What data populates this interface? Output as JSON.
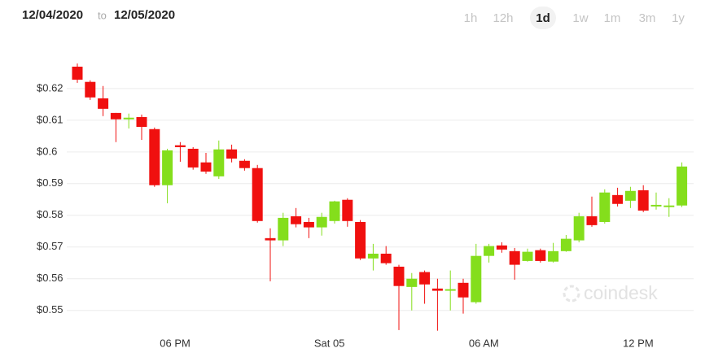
{
  "controls": {
    "from": "12/04/2020",
    "separator": "to",
    "to": "12/05/2020",
    "ranges": [
      "1h",
      "12h",
      "1d",
      "1w",
      "1m",
      "3m",
      "1y"
    ],
    "selected": 2,
    "watermark": "coindesk"
  },
  "chart_data": {
    "type": "candlestick",
    "categories": [
      null,
      null,
      null,
      null,
      null,
      null,
      null,
      null,
      "06 PM",
      null,
      null,
      null,
      null,
      null,
      null,
      null,
      null,
      null,
      null,
      null,
      "Sat 05",
      null,
      null,
      null,
      null,
      null,
      null,
      null,
      null,
      null,
      null,
      null,
      "06 AM",
      null,
      null,
      null,
      null,
      null,
      null,
      null,
      null,
      null,
      null,
      null,
      "12 PM",
      null,
      null,
      null
    ],
    "open": [
      0.6269,
      0.6221,
      0.6169,
      0.6123,
      0.6103,
      0.611,
      0.6072,
      0.5895,
      0.6021,
      0.601,
      0.5967,
      0.5923,
      0.6008,
      0.5972,
      0.5949,
      0.5728,
      0.5721,
      0.5797,
      0.5779,
      0.5762,
      0.5782,
      0.5849,
      0.5779,
      0.5664,
      0.5679,
      0.5638,
      0.5574,
      0.5621,
      0.5569,
      0.5562,
      0.5587,
      0.5526,
      0.5672,
      0.5705,
      0.5687,
      0.5656,
      0.569,
      0.5654,
      0.5687,
      0.5721,
      0.5797,
      0.5779,
      0.5864,
      0.5846,
      0.5879,
      0.5828,
      0.5826,
      0.5831
    ],
    "high": [
      0.6279,
      0.6226,
      0.6208,
      0.6123,
      0.6121,
      0.6118,
      0.6077,
      0.601,
      0.6031,
      0.6015,
      0.5997,
      0.6036,
      0.6023,
      0.5977,
      0.5959,
      0.5759,
      0.5808,
      0.5823,
      0.5792,
      0.5808,
      0.5846,
      0.5854,
      0.5785,
      0.571,
      0.5703,
      0.5644,
      0.5618,
      0.5626,
      0.56,
      0.5626,
      0.56,
      0.571,
      0.571,
      0.5715,
      0.5697,
      0.5695,
      0.5695,
      0.5713,
      0.5738,
      0.5808,
      0.5859,
      0.5882,
      0.5887,
      0.589,
      0.5895,
      0.5872,
      0.5854,
      0.5967
    ],
    "low": [
      0.6218,
      0.6164,
      0.6113,
      0.6031,
      0.6074,
      0.6038,
      0.589,
      0.5838,
      0.5969,
      0.5944,
      0.5931,
      0.5915,
      0.5967,
      0.5941,
      0.5777,
      0.5592,
      0.5703,
      0.5762,
      0.5728,
      0.5736,
      0.5774,
      0.5764,
      0.5659,
      0.5626,
      0.5644,
      0.5438,
      0.55,
      0.5521,
      0.5436,
      0.55,
      0.549,
      0.5521,
      0.5651,
      0.5682,
      0.5597,
      0.5654,
      0.5651,
      0.5651,
      0.5685,
      0.5715,
      0.5764,
      0.5774,
      0.5828,
      0.5823,
      0.581,
      0.5818,
      0.5795,
      0.5826
    ],
    "close": [
      0.6228,
      0.6172,
      0.6136,
      0.6103,
      0.6108,
      0.6079,
      0.5895,
      0.6005,
      0.6015,
      0.5951,
      0.5938,
      0.6008,
      0.5979,
      0.5949,
      0.5782,
      0.5721,
      0.5792,
      0.5772,
      0.5762,
      0.5795,
      0.5844,
      0.5782,
      0.5664,
      0.5679,
      0.5649,
      0.5577,
      0.56,
      0.5582,
      0.5562,
      0.5567,
      0.5541,
      0.5672,
      0.5703,
      0.5692,
      0.5644,
      0.5685,
      0.5656,
      0.5687,
      0.5726,
      0.5797,
      0.5769,
      0.5872,
      0.5836,
      0.5877,
      0.5815,
      0.5833,
      0.5831,
      0.5954
    ],
    "colors": {
      "up": "#84de1c",
      "down": "#f0100f"
    },
    "ylim": [
      0.543,
      0.631
    ],
    "yticks": [
      {
        "value": 0.55,
        "label": "$0.55"
      },
      {
        "value": 0.56,
        "label": "$0.56"
      },
      {
        "value": 0.57,
        "label": "$0.57"
      },
      {
        "value": 0.58,
        "label": "$0.58"
      },
      {
        "value": 0.59,
        "label": "$0.59"
      },
      {
        "value": 0.6,
        "label": "$0.6"
      },
      {
        "value": 0.61,
        "label": "$0.61"
      },
      {
        "value": 0.62,
        "label": "$0.62"
      }
    ],
    "grid": true
  }
}
